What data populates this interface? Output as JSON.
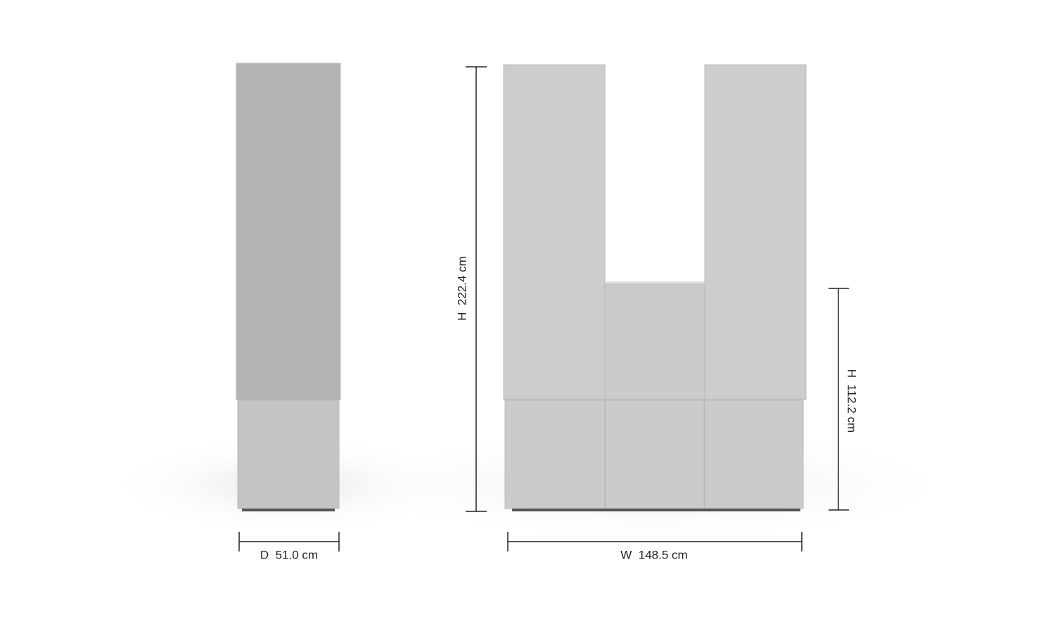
{
  "dimensions": {
    "depth": "D  51.0 cm",
    "width": "W  148.5 cm",
    "height_total": "H  222.4 cm",
    "height_low": "H  112.2 cm"
  }
}
